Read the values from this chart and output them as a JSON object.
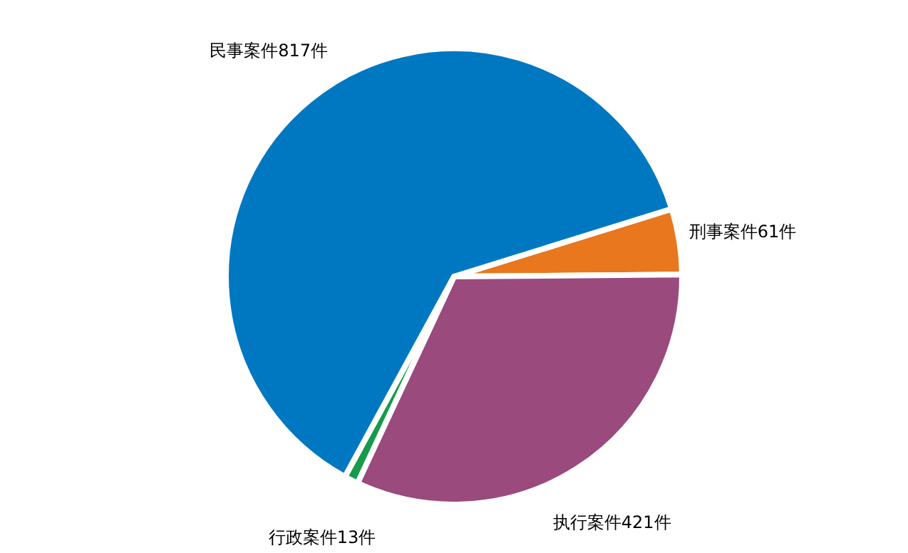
{
  "chart_data": {
    "type": "pie",
    "categories": [
      "刑事案件",
      "执行案件",
      "行政案件",
      "民事案件"
    ],
    "values": [
      61,
      421,
      13,
      817
    ],
    "value_labels": [
      "61件",
      "421件",
      "13件",
      "817件"
    ],
    "colors": [
      "#e8771e",
      "#9a4a7d",
      "#169a4b",
      "#0078c1"
    ],
    "legend": false
  }
}
